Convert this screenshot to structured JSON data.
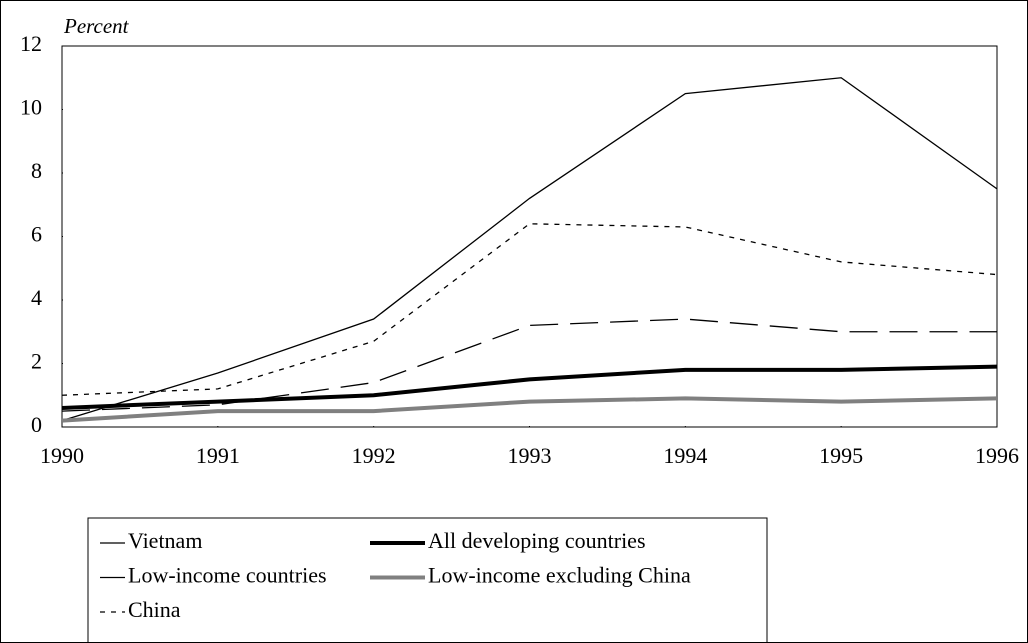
{
  "chart_data": {
    "type": "line",
    "y_axis_label": "Percent",
    "x": [
      1990,
      1991,
      1992,
      1993,
      1994,
      1995,
      1996
    ],
    "xlim": [
      1990,
      1996
    ],
    "xticks": [
      1990,
      1991,
      1992,
      1993,
      1994,
      1995,
      1996
    ],
    "ylim": [
      0,
      12
    ],
    "yticks": [
      0,
      2,
      4,
      6,
      8,
      10,
      12
    ],
    "grid": false,
    "legend": "bottom",
    "series": [
      {
        "name": "Vietnam",
        "color": "#000000",
        "weight": "thin",
        "dash": "solid",
        "values": [
          0.2,
          1.7,
          3.4,
          7.2,
          10.5,
          11.0,
          7.5
        ]
      },
      {
        "name": "All developing countries",
        "color": "#000000",
        "weight": "thick",
        "dash": "solid",
        "values": [
          0.6,
          0.8,
          1.0,
          1.5,
          1.8,
          1.8,
          1.9
        ]
      },
      {
        "name": "Low-income countries",
        "color": "#000000",
        "weight": "thin",
        "dash": "long",
        "values": [
          0.5,
          0.7,
          1.4,
          3.2,
          3.4,
          3.0,
          3.0
        ]
      },
      {
        "name": "Low-income excluding China",
        "color": "#808080",
        "weight": "thick",
        "dash": "solid",
        "values": [
          0.2,
          0.5,
          0.5,
          0.8,
          0.9,
          0.8,
          0.9
        ]
      },
      {
        "name": "China",
        "color": "#000000",
        "weight": "thin",
        "dash": "short",
        "values": [
          1.0,
          1.2,
          2.7,
          6.4,
          6.3,
          5.2,
          4.8
        ]
      }
    ]
  }
}
